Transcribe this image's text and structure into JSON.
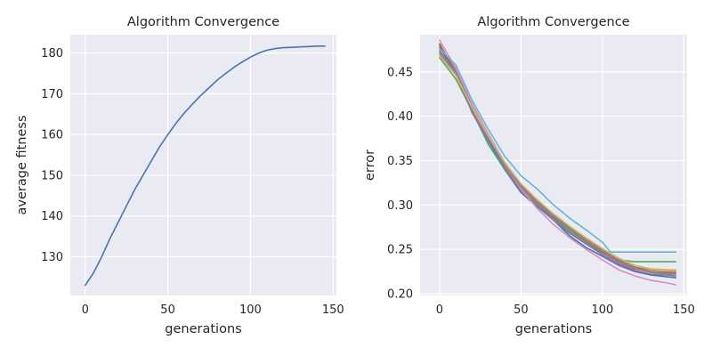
{
  "chart_data": [
    {
      "type": "line",
      "title": "Algorithm Convergence",
      "xlabel": "generations",
      "ylabel": "average fitness",
      "xlim": [
        -9,
        152
      ],
      "ylim": [
        120.5,
        184.5
      ],
      "xticks": [
        0,
        50,
        100,
        150
      ],
      "yticks": [
        130,
        140,
        150,
        160,
        170,
        180
      ],
      "grid": true,
      "series": [
        {
          "color": "#4c72b0",
          "x": [
            0,
            5,
            10,
            15,
            20,
            25,
            30,
            35,
            40,
            45,
            50,
            55,
            60,
            65,
            70,
            75,
            80,
            85,
            90,
            95,
            100,
            105,
            110,
            115,
            120,
            125,
            130,
            135,
            140,
            145
          ],
          "y": [
            123,
            126,
            130,
            134.5,
            138.5,
            142.5,
            146.5,
            150,
            153.5,
            157,
            160,
            162.8,
            165.3,
            167.5,
            169.6,
            171.5,
            173.4,
            175,
            176.5,
            177.8,
            179,
            180,
            180.7,
            181.1,
            181.3,
            181.4,
            181.5,
            181.6,
            181.7,
            181.7
          ]
        }
      ]
    },
    {
      "type": "line",
      "title": "Algorithm Convergence",
      "xlabel": "generations",
      "ylabel": "error",
      "xlim": [
        -12,
        152
      ],
      "ylim": [
        0.198,
        0.492
      ],
      "xticks": [
        0,
        50,
        100,
        150
      ],
      "yticks": [
        0.2,
        0.25,
        0.3,
        0.35,
        0.4,
        0.45
      ],
      "ytick_labels": [
        "0.20",
        "0.25",
        "0.30",
        "0.35",
        "0.40",
        "0.45"
      ],
      "grid": true,
      "series": [
        {
          "color": "#4c72b0",
          "x": [
            0,
            10,
            20,
            30,
            40,
            50,
            60,
            70,
            80,
            90,
            100,
            110,
            120,
            130,
            140,
            145
          ],
          "y": [
            0.478,
            0.45,
            0.405,
            0.372,
            0.34,
            0.314,
            0.298,
            0.283,
            0.265,
            0.252,
            0.242,
            0.232,
            0.225,
            0.221,
            0.219,
            0.218
          ]
        },
        {
          "color": "#dd8452",
          "x": [
            0,
            10,
            20,
            30,
            40,
            50,
            60,
            70,
            80,
            90,
            100,
            110,
            120,
            130,
            140,
            145
          ],
          "y": [
            0.47,
            0.446,
            0.408,
            0.374,
            0.344,
            0.318,
            0.3,
            0.285,
            0.27,
            0.258,
            0.246,
            0.236,
            0.23,
            0.227,
            0.226,
            0.226
          ]
        },
        {
          "color": "#55a868",
          "x": [
            0,
            10,
            20,
            30,
            40,
            50,
            60,
            70,
            80,
            90,
            100,
            110,
            120,
            130,
            140,
            145
          ],
          "y": [
            0.466,
            0.442,
            0.406,
            0.368,
            0.34,
            0.316,
            0.3,
            0.285,
            0.27,
            0.258,
            0.246,
            0.238,
            0.236,
            0.236,
            0.236,
            0.236
          ]
        },
        {
          "color": "#c44e52",
          "x": [
            0,
            10,
            20,
            30,
            40,
            50,
            60,
            70,
            80,
            90,
            100,
            110,
            120,
            130,
            140,
            145
          ],
          "y": [
            0.482,
            0.448,
            0.41,
            0.376,
            0.346,
            0.32,
            0.302,
            0.286,
            0.272,
            0.259,
            0.247,
            0.236,
            0.228,
            0.224,
            0.223,
            0.223
          ]
        },
        {
          "color": "#8172b3",
          "x": [
            0,
            10,
            20,
            30,
            40,
            50,
            60,
            70,
            80,
            90,
            100,
            110,
            120,
            130,
            140,
            145
          ],
          "y": [
            0.474,
            0.45,
            0.404,
            0.373,
            0.342,
            0.315,
            0.299,
            0.283,
            0.268,
            0.256,
            0.244,
            0.234,
            0.226,
            0.222,
            0.221,
            0.22
          ]
        },
        {
          "color": "#937860",
          "x": [
            0,
            10,
            20,
            30,
            40,
            50,
            60,
            70,
            80,
            90,
            100,
            110,
            120,
            130,
            140,
            145
          ],
          "y": [
            0.48,
            0.452,
            0.412,
            0.378,
            0.348,
            0.322,
            0.304,
            0.288,
            0.274,
            0.261,
            0.249,
            0.238,
            0.23,
            0.225,
            0.224,
            0.224
          ]
        },
        {
          "color": "#da8bc3",
          "x": [
            0,
            10,
            20,
            30,
            40,
            50,
            60,
            70,
            80,
            90,
            100,
            110,
            120,
            130,
            140,
            145
          ],
          "y": [
            0.486,
            0.454,
            0.414,
            0.38,
            0.348,
            0.318,
            0.296,
            0.278,
            0.263,
            0.25,
            0.238,
            0.227,
            0.22,
            0.215,
            0.212,
            0.21
          ]
        },
        {
          "color": "#8c8c8c",
          "x": [
            0,
            10,
            20,
            30,
            40,
            50,
            60,
            70,
            80,
            90,
            100,
            110,
            120,
            130,
            140,
            145
          ],
          "y": [
            0.472,
            0.448,
            0.41,
            0.376,
            0.346,
            0.32,
            0.302,
            0.287,
            0.272,
            0.26,
            0.248,
            0.237,
            0.229,
            0.224,
            0.222,
            0.222
          ]
        },
        {
          "color": "#ccb974",
          "x": [
            0,
            10,
            20,
            30,
            40,
            50,
            60,
            70,
            80,
            90,
            100,
            110,
            120,
            130,
            140,
            145
          ],
          "y": [
            0.468,
            0.446,
            0.41,
            0.378,
            0.348,
            0.324,
            0.306,
            0.29,
            0.276,
            0.263,
            0.251,
            0.24,
            0.232,
            0.228,
            0.227,
            0.227
          ]
        },
        {
          "color": "#64b5cd",
          "x": [
            0,
            10,
            20,
            30,
            40,
            50,
            60,
            70,
            80,
            90,
            100,
            105,
            110,
            120,
            130,
            140,
            145
          ],
          "y": [
            0.476,
            0.458,
            0.418,
            0.385,
            0.355,
            0.333,
            0.318,
            0.3,
            0.285,
            0.272,
            0.258,
            0.247,
            0.247,
            0.247,
            0.247,
            0.247,
            0.247
          ]
        }
      ]
    }
  ]
}
